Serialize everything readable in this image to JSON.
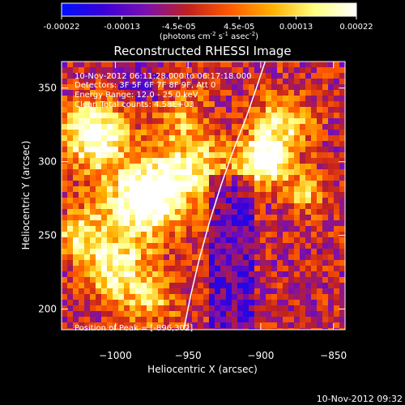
{
  "chart_data": {
    "type": "heatmap",
    "title": "Reconstructed RHESSI Image",
    "colorbar": {
      "ticks": [
        "-0.00022",
        "-0.00013",
        "-4.5e-05",
        "4.5e-05",
        "0.00013",
        "0.00022"
      ],
      "tick_values": [
        -0.00022,
        -0.00013,
        -4.5e-05,
        4.5e-05,
        0.00013,
        0.00022
      ],
      "range": [
        -0.00022,
        0.00022
      ],
      "unit_prefix": "(photons cm",
      "unit_exp1": "-2",
      "unit_mid": " s",
      "unit_exp2": "-1",
      "unit_mid2": " asec",
      "unit_exp3": "-2",
      "unit_suffix": ")",
      "colors": [
        "#0010ff",
        "#3a00d8",
        "#7a10b0",
        "#c02020",
        "#ff5a00",
        "#ffb000",
        "#ffff80",
        "#ffffff"
      ]
    },
    "xlabel": "Heliocentric X (arcsec)",
    "ylabel": "Heliocentric Y (arcsec)",
    "x_ticks": [
      -1000,
      -950,
      -900,
      -850
    ],
    "x_tick_labels": [
      "−1000",
      "−950",
      "−900",
      "−850"
    ],
    "y_ticks": [
      200,
      250,
      300,
      350
    ],
    "y_tick_labels": [
      "200",
      "250",
      "300",
      "350"
    ],
    "xlim": [
      -1037,
      -842
    ],
    "ylim": [
      186,
      368
    ],
    "limb_curve": {
      "x": [
        -953,
        -948,
        -942,
        -935,
        -927,
        -918,
        -910,
        -903,
        -897
      ],
      "y": [
        186,
        210,
        235,
        260,
        285,
        310,
        330,
        350,
        368
      ]
    },
    "peak": [
      -896,
      302
    ],
    "annotations": {
      "time": "10-Nov-2012 06:11:28.000 to 06:17:18.000",
      "detectors": "Detectors: 3F 5F 6F 7F 8F 9F, Att 0",
      "energy": "Energy Range: 12.0 - 25.0 keV",
      "clean": "Clean     Total counts: 4.58E+03",
      "peak_label": "Position of Peak = [-896,302]"
    },
    "footer_timestamp": "10-Nov-2012 09:32"
  }
}
